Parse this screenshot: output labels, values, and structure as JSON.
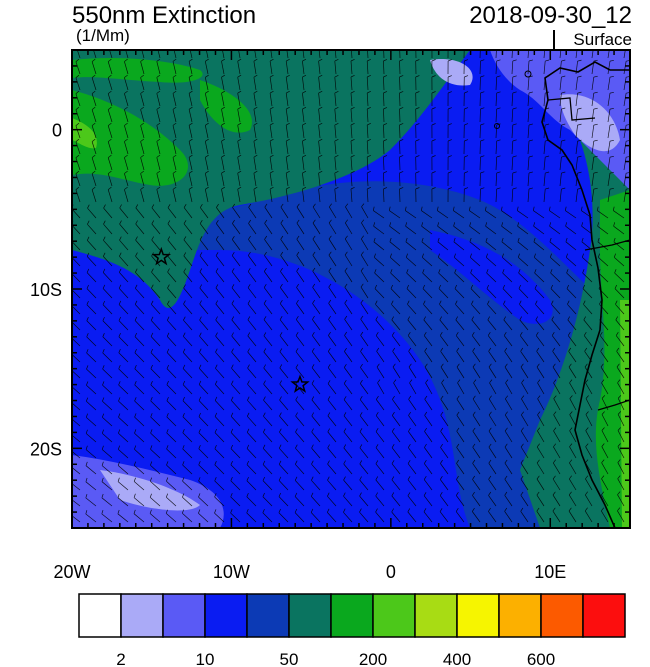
{
  "header": {
    "title": "550nm Extinction",
    "units": "(1/Mm)",
    "datetime": "2018-09-30_12",
    "level": "Surface"
  },
  "map": {
    "lon_range": [
      -20,
      15
    ],
    "lat_range": [
      -25,
      5
    ],
    "x_ticks": [
      {
        "lon": -20,
        "label": "20W"
      },
      {
        "lon": -10,
        "label": "10W"
      },
      {
        "lon": 0,
        "label": "0"
      },
      {
        "lon": 10,
        "label": "10E"
      }
    ],
    "y_ticks": [
      {
        "lat": 0,
        "label": "0"
      },
      {
        "lat": -10,
        "label": "10S"
      },
      {
        "lat": -20,
        "label": "20S"
      }
    ],
    "markers": [
      {
        "type": "star",
        "lon": -14.4,
        "lat": -8.0
      },
      {
        "type": "star",
        "lon": -5.7,
        "lat": -16.0
      }
    ]
  },
  "colorbar": {
    "colors": [
      "#ffffff",
      "#aaaaf7",
      "#5a5af5",
      "#0a1cf2",
      "#0c3ab5",
      "#0a7460",
      "#0aa81e",
      "#4cc81a",
      "#a8dc14",
      "#f6f500",
      "#fcb000",
      "#fc5a00",
      "#fc0e0e"
    ],
    "labels": [
      {
        "after_box": 1,
        "text": "2"
      },
      {
        "after_box": 3,
        "text": "10"
      },
      {
        "after_box": 5,
        "text": "50"
      },
      {
        "after_box": 7,
        "text": "200"
      },
      {
        "after_box": 9,
        "text": "400"
      },
      {
        "after_box": 11,
        "text": "600"
      }
    ]
  }
}
